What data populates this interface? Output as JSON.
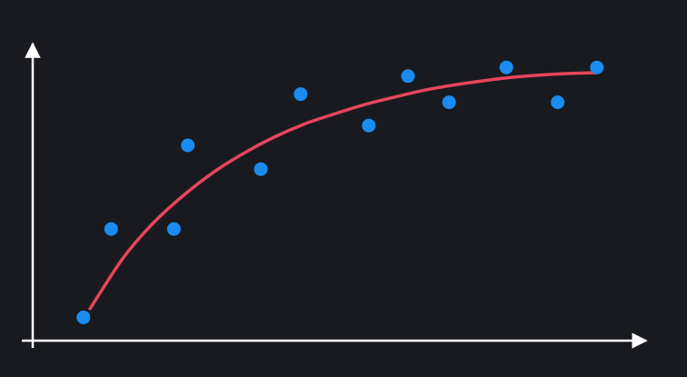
{
  "colors": {
    "background": "#181a1f",
    "axis": "#ffffff",
    "points": "#1a8cf0",
    "curve": "#e8455e"
  },
  "chart_data": {
    "type": "scatter",
    "title": "",
    "xlabel": "",
    "ylabel": "",
    "grid": false,
    "legend": "none",
    "xlim": [
      0,
      10
    ],
    "ylim": [
      0,
      10
    ],
    "series": [
      {
        "kind": "points",
        "color": "#1a8cf0",
        "x": [
          0.84,
          1.3,
          2.34,
          2.57,
          3.78,
          4.44,
          5.57,
          6.22,
          6.9,
          7.85,
          8.7,
          9.35
        ],
        "y": [
          0.8,
          3.84,
          3.84,
          6.72,
          5.9,
          8.48,
          7.4,
          9.1,
          8.2,
          9.4,
          8.2,
          9.4
        ]
      },
      {
        "kind": "fitted-curve",
        "color": "#e8455e",
        "x": [
          0.95,
          1.5,
          2.0,
          2.5,
          3.0,
          3.5,
          4.0,
          4.5,
          5.0,
          5.5,
          6.0,
          6.5,
          7.0,
          7.5,
          8.0,
          8.5,
          9.0,
          9.35
        ],
        "y": [
          1.1,
          2.85,
          4.05,
          5.0,
          5.8,
          6.45,
          7.0,
          7.45,
          7.8,
          8.12,
          8.38,
          8.62,
          8.8,
          8.95,
          9.07,
          9.15,
          9.2,
          9.22
        ]
      }
    ]
  }
}
